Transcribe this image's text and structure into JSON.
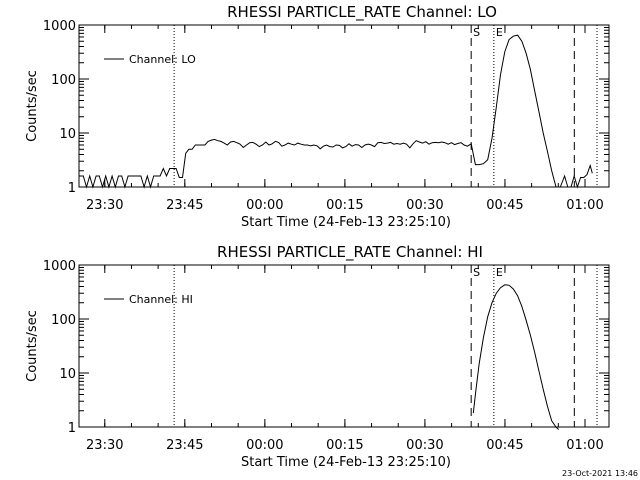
{
  "chart_data": [
    {
      "type": "line",
      "title": "RHESSI PARTICLE_RATE Channel: LO",
      "xlabel": "Start Time (24-Feb-13 23:25:10)",
      "ylabel": "Counts/sec",
      "yscale": "log",
      "ylim": [
        1,
        1000
      ],
      "xlim": [
        "23:25:10",
        "01:04:30"
      ],
      "x_tick_labels": [
        "23:30",
        "23:45",
        "00:00",
        "00:15",
        "00:30",
        "00:45",
        "01:00"
      ],
      "x_tick_minutes": [
        4.83,
        19.83,
        34.83,
        49.83,
        64.83,
        79.83,
        94.83
      ],
      "y_tick_labels": [
        "1",
        "10",
        "100",
        "1000"
      ],
      "legend": {
        "label": "Channel: LO",
        "position": "top-left"
      },
      "vlines": [
        {
          "time": "23:43:00",
          "minute": 17.83,
          "style": "dotted",
          "label": ""
        },
        {
          "time": "00:38:40",
          "minute": 73.5,
          "style": "dashed",
          "label": "S"
        },
        {
          "time": "00:42:55",
          "minute": 77.75,
          "style": "dotted",
          "label": "E"
        },
        {
          "time": "00:58:00",
          "minute": 92.83,
          "style": "dashed",
          "label": ""
        },
        {
          "time": "01:02:15",
          "minute": 97.08,
          "style": "dotted",
          "label": ""
        }
      ],
      "series": [
        {
          "name": "Channel: LO",
          "x_minutes": [
            0,
            0.2,
            0.8,
            1.4,
            2.0,
            2.6,
            3.2,
            3.8,
            4.4,
            5.0,
            5.6,
            6.2,
            6.8,
            7.4,
            8.0,
            8.6,
            9.2,
            9.8,
            10.4,
            11.0,
            11.6,
            12.2,
            12.8,
            13.4,
            14.0,
            14.6,
            15.2,
            15.8,
            16.4,
            17.0,
            17.6,
            18.2,
            18.8,
            19.4,
            20.0,
            20.6,
            21.2,
            21.8,
            22.4,
            23.0,
            23.6,
            24.2,
            24.8,
            25.4,
            26.0,
            26.6,
            27.2,
            27.8,
            28.4,
            29.0,
            29.6,
            30.2,
            30.8,
            31.4,
            32.0,
            32.6,
            33.2,
            33.8,
            34.4,
            35.0,
            35.6,
            36.2,
            36.8,
            37.4,
            38.0,
            38.6,
            39.2,
            39.8,
            40.4,
            41.0,
            41.6,
            42.2,
            42.8,
            43.4,
            44.0,
            44.6,
            45.2,
            45.8,
            46.4,
            47.0,
            47.6,
            48.2,
            48.8,
            49.4,
            50.0,
            50.6,
            51.2,
            51.8,
            52.4,
            53.0,
            53.6,
            54.2,
            54.8,
            55.4,
            56.0,
            56.6,
            57.2,
            57.8,
            58.4,
            59.0,
            59.6,
            60.2,
            60.8,
            61.4,
            62.0,
            62.6,
            63.2,
            63.8,
            64.4,
            65.0,
            65.6,
            66.2,
            66.8,
            67.4,
            68.0,
            68.6,
            69.2,
            69.8,
            70.4,
            71.0,
            71.6,
            72.2,
            72.8,
            73.5,
            74.3,
            75.0,
            75.8,
            76.6,
            77.4,
            78.2,
            79.0,
            79.8,
            80.6,
            81.4,
            82.2,
            83.0,
            83.8,
            84.6,
            85.4,
            86.2,
            87.0,
            87.8,
            88.6,
            89.4,
            90.2,
            91.0,
            91.6,
            92.2,
            92.8,
            93.4,
            94.0,
            94.6,
            95.2,
            95.8,
            96.2
          ],
          "y": [
            1.6,
            1.6,
            1.6,
            1,
            1.6,
            1,
            1.6,
            1.6,
            1,
            1.6,
            1,
            1.6,
            1,
            1.6,
            1.6,
            1,
            1.6,
            1.6,
            1.6,
            1.6,
            1.6,
            1,
            1.6,
            1,
            1.6,
            1.6,
            1.6,
            2.2,
            1.6,
            2.2,
            2.2,
            2.2,
            1.5,
            1.5,
            4.2,
            5,
            5,
            6,
            6,
            6,
            6,
            7,
            7.4,
            7.6,
            7.2,
            7,
            6.5,
            6,
            6.8,
            7,
            6.6,
            6.2,
            5.4,
            6,
            6.6,
            6.7,
            6.2,
            5.6,
            6,
            6.8,
            6,
            6.3,
            7,
            6.7,
            5.7,
            6,
            6.5,
            6.2,
            6,
            6.5,
            6.2,
            6,
            6,
            5.8,
            6,
            5.8,
            5.1,
            5.7,
            6,
            5.6,
            5.5,
            6,
            5.9,
            5.3,
            5.6,
            6.3,
            5.7,
            6.1,
            6,
            5.4,
            6,
            6.2,
            6,
            5.6,
            6.6,
            6.7,
            6.4,
            6.5,
            6.7,
            6.2,
            6.4,
            6.2,
            6.5,
            6.2,
            5.3,
            6.3,
            7.2,
            6.8,
            6.5,
            6.9,
            6.2,
            6.6,
            6.7,
            6.6,
            6.8,
            6.6,
            6.2,
            6.6,
            6.1,
            6.4,
            6.6,
            6,
            5.7,
            6.3,
            2.6,
            2.6,
            2.7,
            3.2,
            8,
            30,
            120,
            320,
            540,
            620,
            650,
            500,
            300,
            150,
            60,
            25,
            10,
            4.5,
            2,
            1,
            1,
            1.6,
            1,
            1,
            1.6,
            1,
            1.5,
            1.5,
            1.7,
            2.5,
            1.8
          ],
          "gaps_after_index": []
        }
      ]
    },
    {
      "type": "line",
      "title": "RHESSI PARTICLE_RATE Channel: HI",
      "xlabel": "Start Time (24-Feb-13 23:25:10)",
      "ylabel": "Counts/sec",
      "yscale": "log",
      "ylim": [
        1,
        1000
      ],
      "xlim": [
        "23:25:10",
        "01:04:30"
      ],
      "x_tick_labels": [
        "23:30",
        "23:45",
        "00:00",
        "00:15",
        "00:30",
        "00:45",
        "01:00"
      ],
      "x_tick_minutes": [
        4.83,
        19.83,
        34.83,
        49.83,
        64.83,
        79.83,
        94.83
      ],
      "y_tick_labels": [
        "1",
        "10",
        "100",
        "1000"
      ],
      "legend": {
        "label": "Channel: HI",
        "position": "top-left"
      },
      "vlines": [
        {
          "time": "23:43:00",
          "minute": 17.83,
          "style": "dotted",
          "label": ""
        },
        {
          "time": "00:38:40",
          "minute": 73.5,
          "style": "dashed",
          "label": "S"
        },
        {
          "time": "00:42:55",
          "minute": 77.75,
          "style": "dotted",
          "label": "E"
        },
        {
          "time": "00:58:00",
          "minute": 92.83,
          "style": "dashed",
          "label": ""
        },
        {
          "time": "01:02:15",
          "minute": 97.08,
          "style": "dotted",
          "label": ""
        }
      ],
      "series": [
        {
          "name": "Channel: HI",
          "x_minutes": [
            73.9,
            74.4,
            75.0,
            75.8,
            76.6,
            77.4,
            78.2,
            79.0,
            79.8,
            80.6,
            81.4,
            82.2,
            83.0,
            83.8,
            84.6,
            85.4,
            86.2,
            87.0,
            87.8,
            88.6,
            89.4,
            89.9
          ],
          "y": [
            1.8,
            5,
            15,
            45,
            110,
            200,
            300,
            380,
            430,
            420,
            360,
            270,
            170,
            95,
            50,
            24,
            11,
            5,
            2.4,
            1.3,
            1,
            0.9
          ]
        }
      ]
    }
  ],
  "footer": {
    "timestamp": "23-Oct-2021 13:46"
  }
}
